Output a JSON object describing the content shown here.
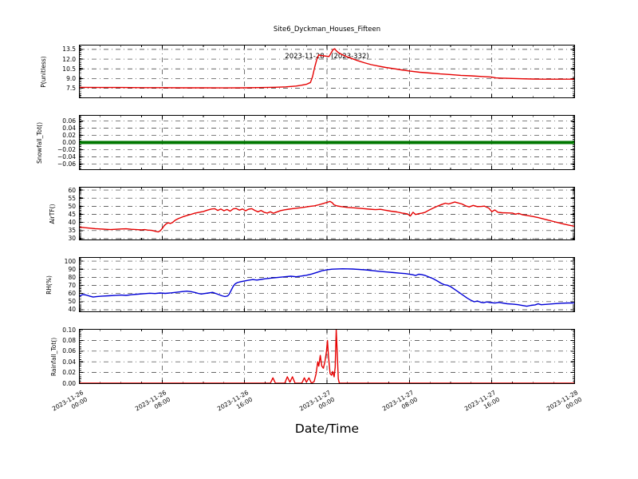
{
  "title": {
    "line1": "Site6_Dyckman_Houses_Fifteen",
    "line2": "2023-11-28 - (2023-332)"
  },
  "xlabel": "Date/Time",
  "xaxis": {
    "range_hours": [
      0,
      48
    ],
    "major_tick_hours": 8,
    "minor_tick_hours": 2,
    "x_unit": "hours since 2023-11-26 00:00",
    "ticklabels": [
      [
        "2023-11-26",
        "00:00"
      ],
      [
        "2023-11-26",
        "08:00"
      ],
      [
        "2023-11-26",
        "16:00"
      ],
      [
        "2023-11-27",
        "00:00"
      ],
      [
        "2023-11-27",
        "08:00"
      ],
      [
        "2023-11-27",
        "16:00"
      ],
      [
        "2023-11-28",
        "00:00"
      ]
    ]
  },
  "grid": {
    "style": "dash-dot",
    "color": "#333333"
  },
  "chart_data": [
    {
      "type": "line",
      "name": "P",
      "ylabel": "P(unitless)",
      "color": "#e60000",
      "linewidth": 1.4,
      "ylim": [
        6.1,
        14.1
      ],
      "yticks": [
        7.5,
        9.0,
        10.5,
        12.0,
        13.5
      ],
      "decimals": 1,
      "minor_step": 0.3,
      "points": [
        [
          0,
          7.65
        ],
        [
          2,
          7.63
        ],
        [
          4,
          7.62
        ],
        [
          6,
          7.6
        ],
        [
          8,
          7.6
        ],
        [
          10,
          7.58
        ],
        [
          12,
          7.58
        ],
        [
          14,
          7.56
        ],
        [
          16,
          7.58
        ],
        [
          18,
          7.62
        ],
        [
          19,
          7.66
        ],
        [
          20,
          7.72
        ],
        [
          20.5,
          7.78
        ],
        [
          21,
          7.85
        ],
        [
          21.5,
          7.97
        ],
        [
          22,
          8.12
        ],
        [
          22.4,
          8.4
        ],
        [
          22.6,
          9.3
        ],
        [
          22.8,
          10.7
        ],
        [
          23,
          11.9
        ],
        [
          23.2,
          12.65
        ],
        [
          23.4,
          12.55
        ],
        [
          23.7,
          12.5
        ],
        [
          24,
          12.45
        ],
        [
          24.2,
          12.4
        ],
        [
          24.4,
          12.95
        ],
        [
          24.6,
          13.5
        ],
        [
          24.75,
          13.6
        ],
        [
          24.9,
          13.3
        ],
        [
          25.1,
          13.0
        ],
        [
          25.4,
          12.75
        ],
        [
          25.8,
          12.45
        ],
        [
          26.3,
          12.15
        ],
        [
          27,
          11.75
        ],
        [
          27.6,
          11.45
        ],
        [
          28.3,
          11.15
        ],
        [
          29,
          10.92
        ],
        [
          29.7,
          10.72
        ],
        [
          30.4,
          10.55
        ],
        [
          31.2,
          10.35
        ],
        [
          32,
          10.18
        ],
        [
          33,
          9.98
        ],
        [
          34,
          9.85
        ],
        [
          35,
          9.72
        ],
        [
          36,
          9.62
        ],
        [
          37,
          9.5
        ],
        [
          38,
          9.42
        ],
        [
          39,
          9.32
        ],
        [
          40,
          9.22
        ],
        [
          40.4,
          9.1
        ],
        [
          41,
          9.07
        ],
        [
          42,
          9.02
        ],
        [
          43,
          8.97
        ],
        [
          44,
          8.93
        ],
        [
          45,
          8.9
        ],
        [
          46,
          8.9
        ],
        [
          47,
          8.9
        ],
        [
          48,
          8.9
        ]
      ]
    },
    {
      "type": "line",
      "name": "Snowfall",
      "ylabel": "Snowfall_Tot()",
      "color": "#007700",
      "linewidth": 4,
      "ylim": [
        -0.075,
        0.075
      ],
      "yticks": [
        0.06,
        0.04,
        0.02,
        0.0,
        -0.02,
        -0.04,
        -0.06
      ],
      "decimals": 2,
      "minor_step": 0.004,
      "points": [
        [
          0,
          0
        ],
        [
          48,
          0
        ]
      ]
    },
    {
      "type": "line",
      "name": "AirTF",
      "ylabel": "AirTF()",
      "color": "#e60000",
      "linewidth": 1.4,
      "ylim": [
        29.5,
        61.5
      ],
      "yticks": [
        30,
        35,
        40,
        45,
        50,
        55,
        60
      ],
      "decimals": 0,
      "minor_step": 1,
      "points": [
        [
          0,
          37.2
        ],
        [
          0.5,
          36.8
        ],
        [
          1,
          36.5
        ],
        [
          1.5,
          36.2
        ],
        [
          2,
          36.0
        ],
        [
          2.5,
          35.8
        ],
        [
          3,
          35.6
        ],
        [
          3.5,
          35.8
        ],
        [
          4,
          36.0
        ],
        [
          4.5,
          36.1
        ],
        [
          5,
          35.8
        ],
        [
          5.5,
          35.6
        ],
        [
          6,
          35.4
        ],
        [
          6.3,
          35.6
        ],
        [
          6.6,
          35.3
        ],
        [
          7,
          35.1
        ],
        [
          7.3,
          34.6
        ],
        [
          7.6,
          34.2
        ],
        [
          7.8,
          34.8
        ],
        [
          8,
          36.2
        ],
        [
          8.2,
          38.0
        ],
        [
          8.4,
          39.2
        ],
        [
          8.6,
          39.8
        ],
        [
          8.8,
          39.4
        ],
        [
          9,
          40.0
        ],
        [
          9.3,
          41.5
        ],
        [
          9.6,
          42.5
        ],
        [
          10,
          43.5
        ],
        [
          10.4,
          44.3
        ],
        [
          10.8,
          45.0
        ],
        [
          11.2,
          45.8
        ],
        [
          11.6,
          46.3
        ],
        [
          12,
          46.8
        ],
        [
          12.4,
          47.6
        ],
        [
          12.8,
          48.3
        ],
        [
          13.1,
          48.5
        ],
        [
          13.4,
          47.4
        ],
        [
          13.7,
          48.3
        ],
        [
          14,
          47.2
        ],
        [
          14.3,
          48.0
        ],
        [
          14.6,
          47.0
        ],
        [
          14.9,
          48.4
        ],
        [
          15.2,
          48.6
        ],
        [
          15.5,
          47.6
        ],
        [
          15.8,
          48.3
        ],
        [
          16.1,
          47.2
        ],
        [
          16.4,
          48.2
        ],
        [
          16.7,
          48.5
        ],
        [
          17,
          47.4
        ],
        [
          17.3,
          46.6
        ],
        [
          17.6,
          47.4
        ],
        [
          17.9,
          46.3
        ],
        [
          18.2,
          45.8
        ],
        [
          18.5,
          46.6
        ],
        [
          18.8,
          45.7
        ],
        [
          19.1,
          46.4
        ],
        [
          19.5,
          47.3
        ],
        [
          19.9,
          47.8
        ],
        [
          20.3,
          48.2
        ],
        [
          20.8,
          48.6
        ],
        [
          21.3,
          49.0
        ],
        [
          21.8,
          49.4
        ],
        [
          22.3,
          49.9
        ],
        [
          22.8,
          50.3
        ],
        [
          23.2,
          50.9
        ],
        [
          23.6,
          51.6
        ],
        [
          24,
          52.4
        ],
        [
          24.3,
          53.0
        ],
        [
          24.5,
          52.2
        ],
        [
          24.7,
          50.8
        ],
        [
          25,
          50.2
        ],
        [
          25.4,
          49.8
        ],
        [
          26,
          49.3
        ],
        [
          26.7,
          49.0
        ],
        [
          27.4,
          48.6
        ],
        [
          28.1,
          48.2
        ],
        [
          28.7,
          47.9
        ],
        [
          29.2,
          48.1
        ],
        [
          29.6,
          47.6
        ],
        [
          30.2,
          47.0
        ],
        [
          30.8,
          46.5
        ],
        [
          31.3,
          45.8
        ],
        [
          31.8,
          45.3
        ],
        [
          32.1,
          44.0
        ],
        [
          32.35,
          46.3
        ],
        [
          32.6,
          44.9
        ],
        [
          32.9,
          45.4
        ],
        [
          33.2,
          45.7
        ],
        [
          33.5,
          46.2
        ],
        [
          33.9,
          47.6
        ],
        [
          34.3,
          48.8
        ],
        [
          34.7,
          50.0
        ],
        [
          35.1,
          51.0
        ],
        [
          35.5,
          51.9
        ],
        [
          35.8,
          51.4
        ],
        [
          36.1,
          52.0
        ],
        [
          36.4,
          52.6
        ],
        [
          36.7,
          52.1
        ],
        [
          37.1,
          51.4
        ],
        [
          37.5,
          50.2
        ],
        [
          37.8,
          49.6
        ],
        [
          38.2,
          50.5
        ],
        [
          38.6,
          49.8
        ],
        [
          39,
          49.9
        ],
        [
          39.3,
          50.1
        ],
        [
          39.7,
          48.9
        ],
        [
          40,
          46.7
        ],
        [
          40.3,
          47.7
        ],
        [
          40.6,
          46.3
        ],
        [
          41,
          46.0
        ],
        [
          41.5,
          45.9
        ],
        [
          42,
          45.8
        ],
        [
          42.3,
          45.1
        ],
        [
          42.6,
          45.6
        ],
        [
          43,
          44.7
        ],
        [
          43.5,
          44.2
        ],
        [
          44,
          43.7
        ],
        [
          44.5,
          43.0
        ],
        [
          45,
          42.2
        ],
        [
          45.5,
          41.4
        ],
        [
          46,
          40.6
        ],
        [
          46.5,
          39.8
        ],
        [
          47,
          39.0
        ],
        [
          47.5,
          38.3
        ],
        [
          48,
          37.7
        ]
      ]
    },
    {
      "type": "line",
      "name": "RH",
      "ylabel": "RH(%)",
      "color": "#0000d6",
      "linewidth": 1.4,
      "ylim": [
        38,
        104
      ],
      "yticks": [
        40,
        50,
        60,
        70,
        80,
        90,
        100
      ],
      "decimals": 0,
      "minor_step": 2,
      "points": [
        [
          0,
          57
        ],
        [
          0.3,
          58.8
        ],
        [
          0.6,
          58.2
        ],
        [
          1,
          56.6
        ],
        [
          1.3,
          55.6
        ],
        [
          1.7,
          56.3
        ],
        [
          2.2,
          56.8
        ],
        [
          2.8,
          57.2
        ],
        [
          3.4,
          57.6
        ],
        [
          4,
          58.1
        ],
        [
          4.5,
          57.7
        ],
        [
          5,
          58.5
        ],
        [
          5.6,
          59.2
        ],
        [
          6.2,
          59.8
        ],
        [
          6.8,
          60.4
        ],
        [
          7.3,
          60.0
        ],
        [
          7.8,
          60.7
        ],
        [
          8.3,
          60.2
        ],
        [
          8.9,
          60.9
        ],
        [
          9.5,
          61.7
        ],
        [
          10,
          62.4
        ],
        [
          10.4,
          62.9
        ],
        [
          10.8,
          62.3
        ],
        [
          11.2,
          61.2
        ],
        [
          11.5,
          60.2
        ],
        [
          11.8,
          59.4
        ],
        [
          12.1,
          60.0
        ],
        [
          12.5,
          60.7
        ],
        [
          12.9,
          61.4
        ],
        [
          13.2,
          60.1
        ],
        [
          13.5,
          58.7
        ],
        [
          13.8,
          57.2
        ],
        [
          14.1,
          56.2
        ],
        [
          14.35,
          57.0
        ],
        [
          14.5,
          59.0
        ],
        [
          14.7,
          64.0
        ],
        [
          14.9,
          69.0
        ],
        [
          15.1,
          72.0
        ],
        [
          15.3,
          73.5
        ],
        [
          15.6,
          74.5
        ],
        [
          16,
          75.5
        ],
        [
          16.4,
          76.5
        ],
        [
          16.8,
          77.2
        ],
        [
          17.2,
          76.6
        ],
        [
          17.6,
          77.4
        ],
        [
          18,
          78.2
        ],
        [
          18.5,
          79.0
        ],
        [
          19,
          79.6
        ],
        [
          19.5,
          80.2
        ],
        [
          20,
          80.8
        ],
        [
          20.5,
          81.3
        ],
        [
          21,
          80.7
        ],
        [
          21.5,
          81.5
        ],
        [
          22,
          82.5
        ],
        [
          22.5,
          84.0
        ],
        [
          23,
          86.0
        ],
        [
          23.5,
          88.0
        ],
        [
          24,
          89.3
        ],
        [
          24.5,
          90.0
        ],
        [
          25,
          90.3
        ],
        [
          25.5,
          90.5
        ],
        [
          26,
          90.4
        ],
        [
          26.5,
          90.2
        ],
        [
          27,
          89.8
        ],
        [
          27.7,
          89.2
        ],
        [
          28.4,
          88.3
        ],
        [
          29.1,
          87.4
        ],
        [
          29.8,
          86.6
        ],
        [
          30.5,
          85.8
        ],
        [
          31.1,
          85.1
        ],
        [
          31.6,
          84.6
        ],
        [
          32,
          83.9
        ],
        [
          32.3,
          83.2
        ],
        [
          32.6,
          82.2
        ],
        [
          32.9,
          83.8
        ],
        [
          33.2,
          83.4
        ],
        [
          33.5,
          82.4
        ],
        [
          33.9,
          80.4
        ],
        [
          34.3,
          78.4
        ],
        [
          34.7,
          75.5
        ],
        [
          35.1,
          72.5
        ],
        [
          35.4,
          70.8
        ],
        [
          35.7,
          70.2
        ],
        [
          36,
          68.5
        ],
        [
          36.4,
          65.0
        ],
        [
          36.8,
          61.5
        ],
        [
          37.2,
          58.0
        ],
        [
          37.6,
          54.5
        ],
        [
          38,
          51.5
        ],
        [
          38.3,
          49.8
        ],
        [
          38.6,
          50.8
        ],
        [
          38.9,
          49.3
        ],
        [
          39.2,
          48.6
        ],
        [
          39.5,
          49.6
        ],
        [
          39.9,
          48.8
        ],
        [
          40.3,
          48.2
        ],
        [
          40.7,
          49.0
        ],
        [
          41.1,
          48.1
        ],
        [
          41.5,
          47.4
        ],
        [
          42,
          47.0
        ],
        [
          42.5,
          46.3
        ],
        [
          43,
          45.2
        ],
        [
          43.4,
          44.3
        ],
        [
          43.8,
          45.4
        ],
        [
          44.2,
          46.0
        ],
        [
          44.5,
          47.3
        ],
        [
          44.8,
          46.2
        ],
        [
          45.2,
          46.6
        ],
        [
          45.7,
          47.1
        ],
        [
          46.2,
          47.6
        ],
        [
          46.8,
          48.0
        ],
        [
          47.4,
          48.3
        ],
        [
          48,
          48.2
        ]
      ]
    },
    {
      "type": "line",
      "name": "Rainfall",
      "ylabel": "Rainfall_Tot()",
      "color": "#e60000",
      "linewidth": 1.4,
      "ylim": [
        0,
        0.1
      ],
      "yticks": [
        0.0,
        0.02,
        0.04,
        0.06,
        0.08,
        0.1
      ],
      "decimals": 2,
      "minor_step": 0.004,
      "points": [
        [
          0,
          0
        ],
        [
          18.5,
          0
        ],
        [
          18.75,
          0.01
        ],
        [
          19.0,
          0
        ],
        [
          19.9,
          0
        ],
        [
          20.15,
          0.012
        ],
        [
          20.4,
          0.002
        ],
        [
          20.65,
          0.012
        ],
        [
          20.9,
          0
        ],
        [
          21.55,
          0
        ],
        [
          21.8,
          0.01
        ],
        [
          22.0,
          0.002
        ],
        [
          22.25,
          0.01
        ],
        [
          22.5,
          0
        ],
        [
          22.75,
          0.003
        ],
        [
          22.95,
          0.018
        ],
        [
          23.1,
          0.04
        ],
        [
          23.2,
          0.032
        ],
        [
          23.35,
          0.052
        ],
        [
          23.5,
          0.032
        ],
        [
          23.65,
          0.028
        ],
        [
          23.8,
          0.04
        ],
        [
          23.95,
          0.06
        ],
        [
          24.05,
          0.08
        ],
        [
          24.15,
          0.05
        ],
        [
          24.3,
          0.018
        ],
        [
          24.45,
          0.015
        ],
        [
          24.55,
          0.022
        ],
        [
          24.7,
          0.012
        ],
        [
          24.8,
          0.03
        ],
        [
          24.9,
          0.1
        ],
        [
          25.0,
          0.055
        ],
        [
          25.1,
          0.008
        ],
        [
          25.2,
          0
        ],
        [
          48,
          0
        ]
      ]
    }
  ]
}
